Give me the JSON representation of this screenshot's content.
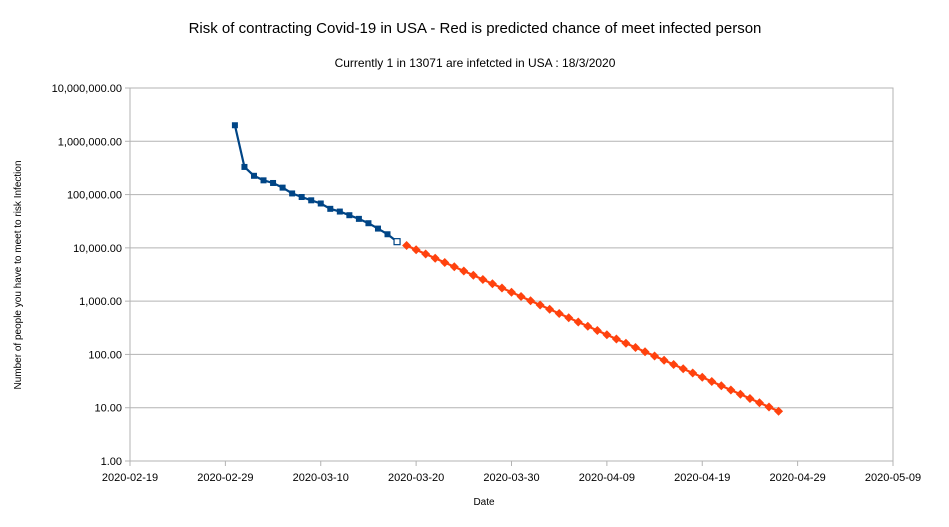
{
  "chart_data": {
    "type": "line",
    "title": "Risk of contracting Covid-19 in USA - Red is predicted chance of meet infected person",
    "subtitle": "Currently  1 in 13071  are infetcted in USA :  18/3/2020",
    "xlabel": "Date",
    "ylabel": "Number of people you have to meet to risk Infection",
    "y_scale": "log",
    "ylim": [
      1,
      10000000
    ],
    "xlim": [
      "2020-02-19",
      "2020-05-09"
    ],
    "x_ticks": [
      "2020-02-19",
      "2020-02-29",
      "2020-03-10",
      "2020-03-20",
      "2020-03-30",
      "2020-04-09",
      "2020-04-19",
      "2020-04-29",
      "2020-05-09"
    ],
    "y_ticks": [
      "1.00",
      "10.00",
      "100.00",
      "1,000.00",
      "10,000.00",
      "100,000.00",
      "1,000,000.00",
      "10,000,000.00"
    ],
    "y_tick_values": [
      1,
      10,
      100,
      1000,
      10000,
      100000,
      1000000,
      10000000
    ],
    "grid": "horizontal",
    "series": [
      {
        "color": "#004586",
        "marker": "square",
        "points": [
          [
            "2020-03-01",
            2000000
          ],
          [
            "2020-03-02",
            330000
          ],
          [
            "2020-03-03",
            225000
          ],
          [
            "2020-03-04",
            185000
          ],
          [
            "2020-03-05",
            165000
          ],
          [
            "2020-03-06",
            135000
          ],
          [
            "2020-03-07",
            105000
          ],
          [
            "2020-03-08",
            90000
          ],
          [
            "2020-03-09",
            78000
          ],
          [
            "2020-03-10",
            68000
          ],
          [
            "2020-03-11",
            54000
          ],
          [
            "2020-03-12",
            48000
          ],
          [
            "2020-03-13",
            41000
          ],
          [
            "2020-03-14",
            35000
          ],
          [
            "2020-03-15",
            29000
          ],
          [
            "2020-03-16",
            23000
          ],
          [
            "2020-03-17",
            18000
          ],
          [
            "2020-03-18",
            13071
          ]
        ]
      },
      {
        "color": "#ff420e",
        "marker": "diamond",
        "start": "2020-03-19",
        "end": "2020-04-27",
        "start_value": 11100,
        "end_value": 8.6
      }
    ]
  }
}
